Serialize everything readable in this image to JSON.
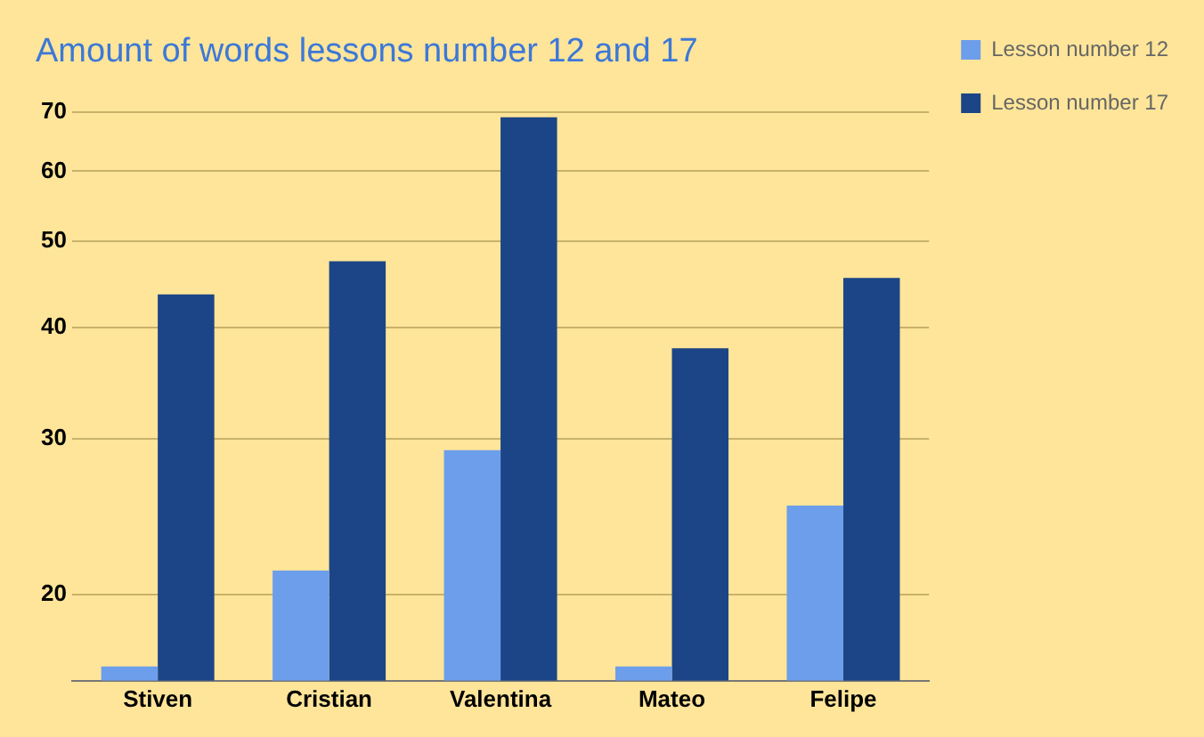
{
  "chart_data": {
    "type": "bar",
    "title": "Amount of words lessons number 12 and 17",
    "categories": [
      "Stiven",
      "Cristian",
      "Valentina",
      "Mateo",
      "Felipe"
    ],
    "series": [
      {
        "name": "Lesson number 12",
        "color": "#6d9eeb",
        "values": [
          16.6,
          21.3,
          29.1,
          16.6,
          25.2
        ]
      },
      {
        "name": "Lesson number 17",
        "color": "#1c4587",
        "values": [
          43.6,
          47.5,
          69,
          37.9,
          45.5
        ]
      }
    ],
    "log": "y",
    "ylim": [
      16,
      70
    ],
    "yticks": [
      20,
      30,
      40,
      50,
      60,
      70
    ],
    "grid": "y",
    "legend": "top right"
  }
}
